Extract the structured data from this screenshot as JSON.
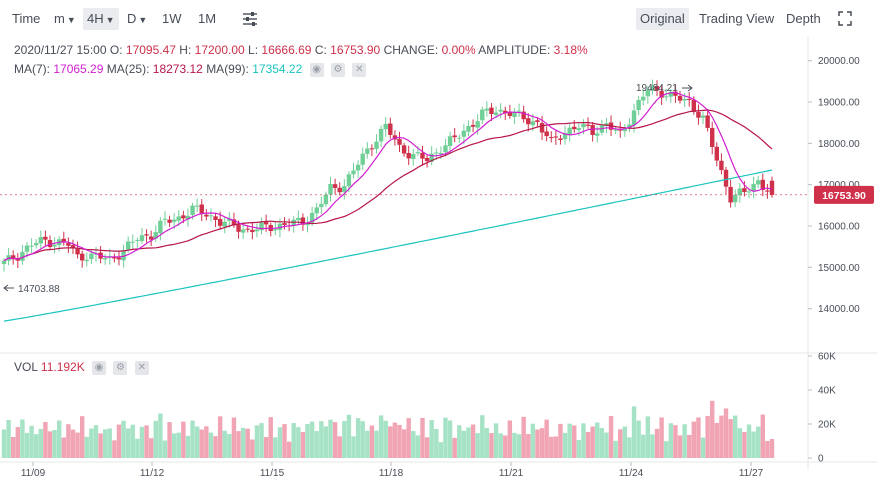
{
  "toolbar": {
    "time": "Time",
    "minute": "m",
    "interval": "4H",
    "day": "D",
    "week": "1W",
    "month": "1M",
    "original": "Original",
    "trading_view": "Trading View",
    "depth": "Depth",
    "settings_icon": "sliders-icon",
    "fullscreen_icon": "fullscreen-icon"
  },
  "info": {
    "datetime": "2020/11/27 15:00",
    "open_label": "O:",
    "open": "17095.47",
    "high_label": "H:",
    "high": "17200.00",
    "low_label": "L:",
    "low": "16666.69",
    "close_label": "C:",
    "close": "16753.90",
    "change_label": "CHANGE:",
    "change": "0.00%",
    "amplitude_label": "AMPLITUDE:",
    "amplitude": "3.18%",
    "ma7_label": "MA(7):",
    "ma7": "17065.29",
    "ma25_label": "MA(25):",
    "ma25": "18273.12",
    "ma99_label": "MA(99):",
    "ma99": "17354.22",
    "vol_label": "VOL",
    "vol": "11.192K"
  },
  "colors": {
    "up": "#6fcf97",
    "up_vol": "#a6e3c6",
    "down": "#cf304a",
    "down_vol": "#f1a4b4",
    "ma7": "#d21fd2",
    "ma25": "#b8154a",
    "ma99": "#1cc4c0"
  },
  "chart_data": [
    {
      "type": "candlestick",
      "title": "",
      "x_ticks": [
        "11/09",
        "11/12",
        "11/15",
        "11/18",
        "11/21",
        "11/24",
        "11/27"
      ],
      "y_ticks": [
        "14000.00",
        "15000.00",
        "16000.00",
        "17000.00",
        "18000.00",
        "19000.00",
        "20000.00"
      ],
      "ylim": [
        13000,
        20500
      ],
      "current_price": "16753.90",
      "annotations": {
        "high": "19484.21",
        "low": "14703.88"
      },
      "close_points": [
        [
          0,
          15100
        ],
        [
          3,
          15300
        ],
        [
          6,
          15550
        ],
        [
          9,
          15650
        ],
        [
          12,
          15600
        ],
        [
          14,
          15550
        ],
        [
          16,
          15250
        ],
        [
          18,
          15300
        ],
        [
          20,
          15250
        ],
        [
          23,
          15200
        ],
        [
          26,
          15400
        ],
        [
          29,
          15700
        ],
        [
          32,
          15800
        ],
        [
          35,
          16100
        ],
        [
          38,
          16200
        ],
        [
          41,
          16400
        ],
        [
          44,
          16300
        ],
        [
          47,
          16100
        ],
        [
          50,
          16000
        ],
        [
          53,
          15900
        ],
        [
          56,
          15950
        ],
        [
          59,
          16000
        ],
        [
          62,
          16050
        ],
        [
          65,
          16100
        ],
        [
          68,
          16400
        ],
        [
          71,
          16900
        ],
        [
          74,
          17000
        ],
        [
          77,
          17500
        ],
        [
          80,
          18000
        ],
        [
          83,
          18400
        ],
        [
          86,
          17900
        ],
        [
          89,
          17700
        ],
        [
          92,
          17600
        ],
        [
          95,
          17900
        ],
        [
          98,
          18100
        ],
        [
          101,
          18400
        ],
        [
          104,
          18700
        ],
        [
          107,
          18800
        ],
        [
          110,
          18750
        ],
        [
          113,
          18600
        ],
        [
          116,
          18500
        ],
        [
          119,
          18000
        ],
        [
          122,
          18300
        ],
        [
          125,
          18400
        ],
        [
          128,
          18300
        ],
        [
          131,
          18450
        ],
        [
          134,
          18200
        ],
        [
          137,
          18800
        ],
        [
          140,
          19300
        ],
        [
          143,
          19250
        ],
        [
          146,
          19100
        ],
        [
          149,
          19000
        ],
        [
          152,
          18600
        ],
        [
          155,
          17600
        ],
        [
          158,
          16700
        ],
        [
          161,
          16800
        ],
        [
          164,
          17100
        ],
        [
          167,
          16750
        ]
      ],
      "ma7": "magenta moving average",
      "ma25": "crimson moving average",
      "ma99": "teal moving average"
    },
    {
      "type": "bar",
      "title": "",
      "y_ticks": [
        "0",
        "20K",
        "40K",
        "60K"
      ],
      "ylim": [
        0,
        60000
      ]
    }
  ]
}
